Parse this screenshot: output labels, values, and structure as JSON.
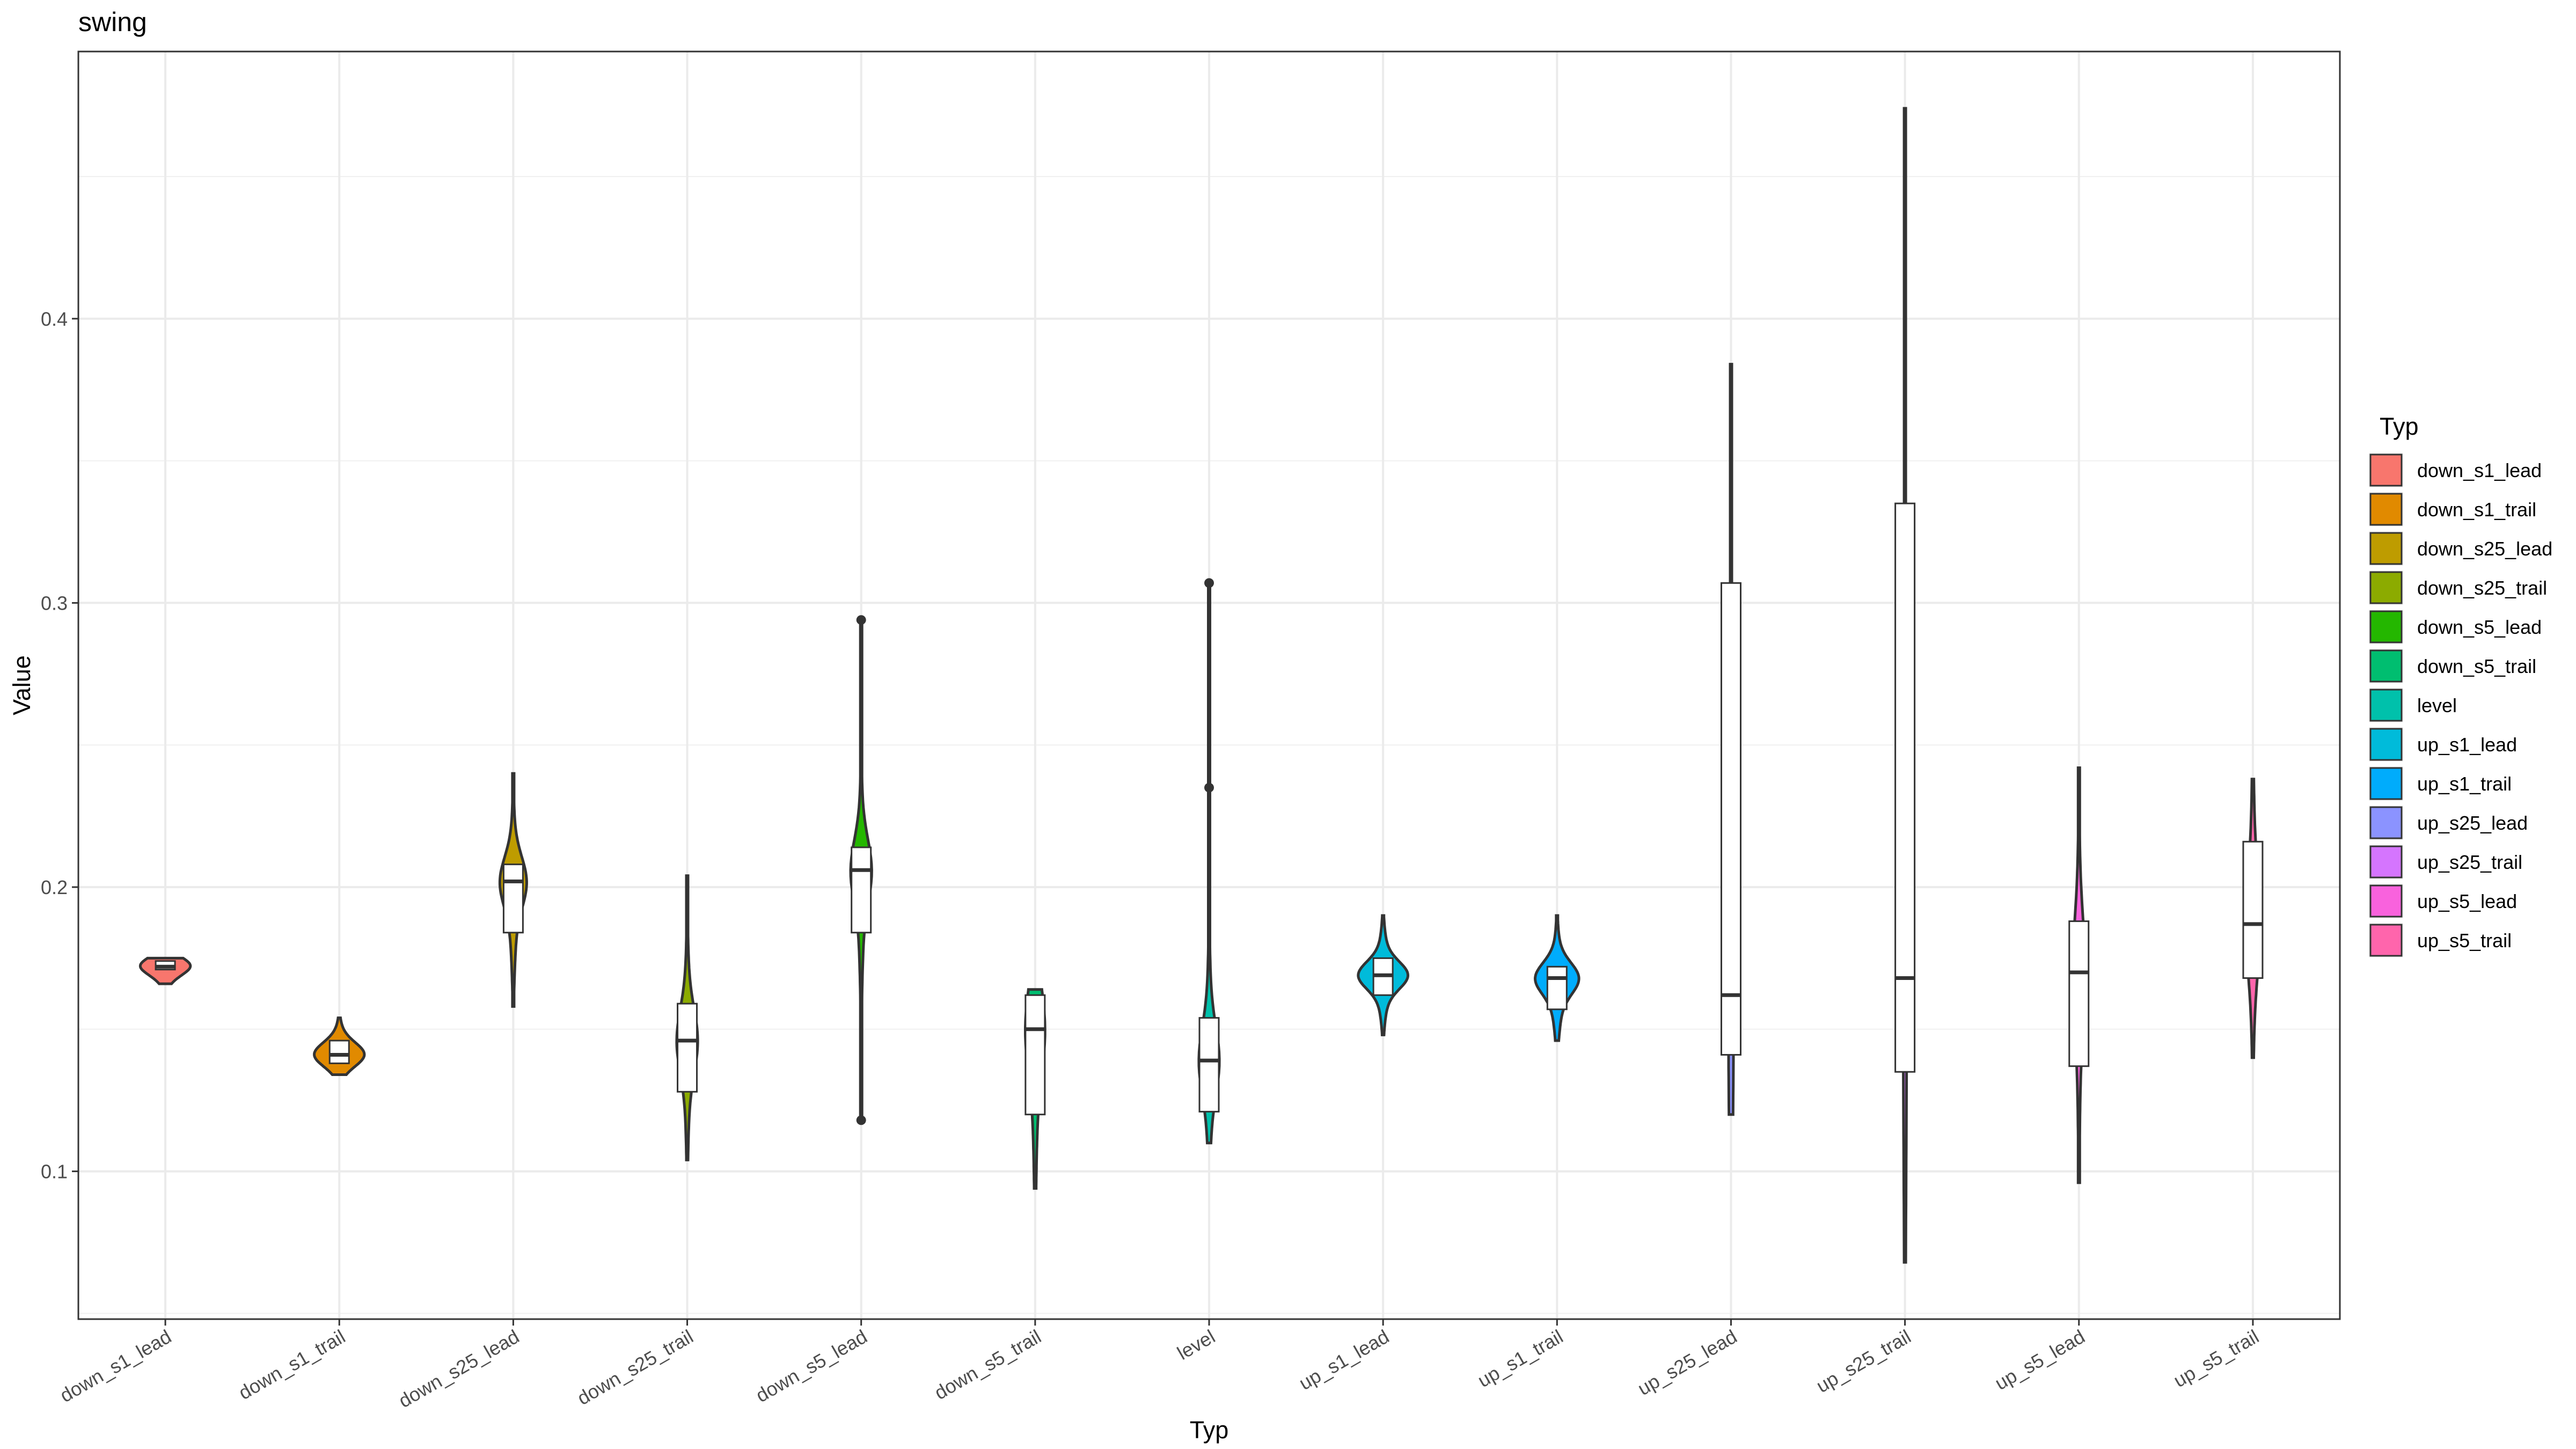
{
  "chart_data": {
    "type": "violin",
    "title": "swing",
    "xlabel": "Typ",
    "ylabel": "Value",
    "ylim": [
      0.048,
      0.494
    ],
    "y_ticks": [
      0.1,
      0.2,
      0.3,
      0.4
    ],
    "grid": true,
    "legend": {
      "title": "Typ",
      "position": "right"
    },
    "categories": [
      "down_s1_lead",
      "down_s1_trail",
      "down_s25_lead",
      "down_s25_trail",
      "down_s5_lead",
      "down_s5_trail",
      "level",
      "up_s1_lead",
      "up_s1_trail",
      "up_s25_lead",
      "up_s25_trail",
      "up_s5_lead",
      "up_s5_trail"
    ],
    "colors": [
      "#F8766D",
      "#E18A00",
      "#BE9C00",
      "#8CAB00",
      "#24B700",
      "#00BE70",
      "#00C1AB",
      "#00BBDA",
      "#00ACFC",
      "#8B93FF",
      "#D575FE",
      "#F962DD",
      "#FF65AC"
    ],
    "series": [
      {
        "category": "down_s1_lead",
        "min": 0.166,
        "q1": 0.171,
        "median": 0.172,
        "q3": 0.174,
        "max": 0.175,
        "outliers": []
      },
      {
        "category": "down_s1_trail",
        "min": 0.134,
        "q1": 0.138,
        "median": 0.141,
        "q3": 0.146,
        "max": 0.154,
        "outliers": []
      },
      {
        "category": "down_s25_lead",
        "min": 0.158,
        "q1": 0.184,
        "median": 0.202,
        "q3": 0.208,
        "max": 0.24,
        "outliers": []
      },
      {
        "category": "down_s25_trail",
        "min": 0.104,
        "q1": 0.128,
        "median": 0.146,
        "q3": 0.159,
        "max": 0.204,
        "outliers": []
      },
      {
        "category": "down_s5_lead",
        "min": 0.118,
        "q1": 0.184,
        "median": 0.206,
        "q3": 0.214,
        "max": 0.294,
        "outliers": [
          0.118,
          0.294
        ]
      },
      {
        "category": "down_s5_trail",
        "min": 0.094,
        "q1": 0.12,
        "median": 0.15,
        "q3": 0.162,
        "max": 0.164,
        "outliers": []
      },
      {
        "category": "level",
        "min": 0.11,
        "q1": 0.121,
        "median": 0.139,
        "q3": 0.154,
        "max": 0.307,
        "outliers": [
          0.235,
          0.307
        ]
      },
      {
        "category": "up_s1_lead",
        "min": 0.148,
        "q1": 0.162,
        "median": 0.169,
        "q3": 0.175,
        "max": 0.19,
        "outliers": []
      },
      {
        "category": "up_s1_trail",
        "min": 0.146,
        "q1": 0.157,
        "median": 0.168,
        "q3": 0.172,
        "max": 0.19,
        "outliers": []
      },
      {
        "category": "up_s25_lead",
        "min": 0.12,
        "q1": 0.141,
        "median": 0.162,
        "q3": 0.307,
        "max": 0.384,
        "outliers": []
      },
      {
        "category": "up_s25_trail",
        "min": 0.068,
        "q1": 0.135,
        "median": 0.168,
        "q3": 0.335,
        "max": 0.474,
        "outliers": []
      },
      {
        "category": "up_s5_lead",
        "min": 0.096,
        "q1": 0.137,
        "median": 0.17,
        "q3": 0.188,
        "max": 0.242,
        "outliers": []
      },
      {
        "category": "up_s5_trail",
        "min": 0.14,
        "q1": 0.168,
        "median": 0.187,
        "q3": 0.216,
        "max": 0.238,
        "outliers": []
      }
    ]
  }
}
